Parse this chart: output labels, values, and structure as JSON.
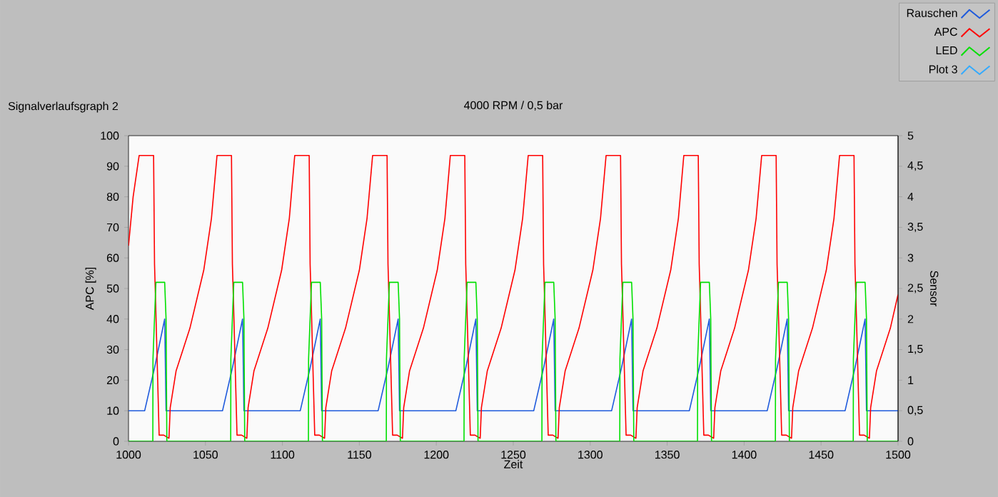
{
  "chart_data": {
    "type": "line",
    "title": "4000 RPM / 0,5 bar",
    "annotations": [
      "Signalverlaufsgraph 2"
    ],
    "xlabel": "Zeit",
    "ylabel": "APC [%]",
    "y2label": "Sensor",
    "xlim": [
      1000,
      1500
    ],
    "xticks": [
      1000,
      1050,
      1100,
      1150,
      1200,
      1250,
      1300,
      1350,
      1400,
      1450,
      1500
    ],
    "ylim": [
      0,
      100
    ],
    "yticks": [
      0,
      10,
      20,
      30,
      40,
      50,
      60,
      70,
      80,
      90,
      100
    ],
    "y2lim": [
      0,
      5
    ],
    "y2ticks": [
      0,
      {
        "value": 0.5,
        "label": "0,5"
      },
      1,
      {
        "value": 1.5,
        "label": "1,5"
      },
      2,
      {
        "value": 2.5,
        "label": "2,5"
      },
      3,
      {
        "value": 3.5,
        "label": "3,5"
      },
      4,
      {
        "value": 4.5,
        "label": "4,5"
      },
      5
    ],
    "legend": "top right",
    "marker": "none",
    "line_style": "solid",
    "grid": false,
    "series": [
      {
        "name": "Rauschen",
        "color": "#1e5adc",
        "x": [
          1000,
          1010.5,
          1016.9,
          1023.5,
          1024.4,
          1061.1,
          1067.5,
          1074.1,
          1075,
          1111.6,
          1118,
          1124.6,
          1125.5,
          1162.2,
          1168.6,
          1175.2,
          1176.1,
          1212.7,
          1219.1,
          1225.7,
          1226.6,
          1263.3,
          1269.7,
          1276.3,
          1277.2,
          1313.9,
          1320.3,
          1326.9,
          1327.8,
          1364.4,
          1370.8,
          1377.4,
          1378.3,
          1415,
          1421.4,
          1428,
          1428.9,
          1465.6,
          1472,
          1478.6,
          1479.5,
          1500
        ],
        "values": [
          10,
          10,
          24,
          40,
          10,
          10,
          24,
          40,
          10,
          10,
          24,
          40,
          10,
          10,
          24,
          40,
          10,
          10,
          24,
          40,
          10,
          10,
          24,
          40,
          10,
          10,
          24,
          40,
          10,
          10,
          24,
          40,
          10,
          10,
          24,
          40,
          10,
          10,
          24,
          40,
          10,
          10
        ]
      },
      {
        "name": "APC",
        "color": "#ff0000",
        "x": [
          1000,
          1003,
          1006.9,
          1016.3,
          1016.9,
          1017.9,
          1019.9,
          1022.9,
          1026.3,
          1027.1,
          1030.9,
          1039.9,
          1048.9,
          1053.9,
          1057.5,
          1066.9,
          1067.5,
          1068.5,
          1070.5,
          1073.5,
          1076.9,
          1077.7,
          1081.5,
          1090.5,
          1099.5,
          1104.5,
          1108,
          1117.4,
          1118,
          1119,
          1121,
          1124,
          1127.4,
          1128.2,
          1132,
          1141,
          1150,
          1155,
          1158.6,
          1168,
          1168.6,
          1169.6,
          1171.6,
          1174.6,
          1178,
          1178.8,
          1182.6,
          1191.6,
          1200.6,
          1205.6,
          1209.1,
          1218.5,
          1219.1,
          1220.1,
          1222.1,
          1225.1,
          1228.5,
          1229.3,
          1233.1,
          1242.1,
          1251.1,
          1256.1,
          1259.7,
          1269.1,
          1269.7,
          1270.7,
          1272.7,
          1275.7,
          1279.1,
          1279.9,
          1283.7,
          1292.7,
          1301.7,
          1306.7,
          1310.3,
          1319.7,
          1320.3,
          1321.3,
          1323.3,
          1326.3,
          1329.7,
          1330.5,
          1334.3,
          1343.3,
          1352.3,
          1357.3,
          1360.8,
          1370.2,
          1370.8,
          1371.8,
          1373.8,
          1376.8,
          1380.2,
          1381,
          1384.8,
          1393.8,
          1402.8,
          1407.8,
          1411.4,
          1420.8,
          1421.4,
          1422.4,
          1424.4,
          1427.4,
          1430.8,
          1431.6,
          1435.4,
          1444.4,
          1453.4,
          1458.4,
          1462,
          1471.4,
          1472,
          1473,
          1475,
          1478,
          1481.4,
          1482.2,
          1486,
          1495,
          1500
        ],
        "values": [
          64,
          80,
          93.5,
          93.5,
          58,
          40,
          2,
          2,
          1,
          11,
          23,
          37,
          56,
          73,
          93.5,
          93.5,
          58,
          40,
          2,
          2,
          1,
          11,
          23,
          37,
          56,
          73,
          93.5,
          93.5,
          58,
          40,
          2,
          2,
          1,
          11,
          23,
          37,
          56,
          73,
          93.5,
          93.5,
          58,
          40,
          2,
          2,
          1,
          11,
          23,
          37,
          56,
          73,
          93.5,
          93.5,
          58,
          40,
          2,
          2,
          1,
          11,
          23,
          37,
          56,
          73,
          93.5,
          93.5,
          58,
          40,
          2,
          2,
          1,
          11,
          23,
          37,
          56,
          73,
          93.5,
          93.5,
          58,
          40,
          2,
          2,
          1,
          11,
          23,
          37,
          56,
          73,
          93.5,
          93.5,
          58,
          40,
          2,
          2,
          1,
          11,
          23,
          37,
          56,
          73,
          93.5,
          93.5,
          58,
          40,
          2,
          2,
          1,
          11,
          23,
          37,
          56,
          73,
          93.5,
          93.5,
          58,
          40,
          2,
          2,
          1,
          11,
          23,
          37,
          48
        ]
      },
      {
        "name": "LED",
        "color": "#00e000",
        "x": [
          1000,
          1015.8,
          1015.9,
          1017.8,
          1023.5,
          1024.4,
          1024.9,
          1066.4,
          1066.5,
          1068.4,
          1074.1,
          1075,
          1075.5,
          1116.9,
          1117,
          1118.9,
          1124.6,
          1125.5,
          1126,
          1167.5,
          1167.6,
          1169.5,
          1175.2,
          1176.1,
          1176.6,
          1218,
          1218.1,
          1220,
          1225.7,
          1226.6,
          1227.1,
          1268.6,
          1268.7,
          1270.6,
          1276.3,
          1277.2,
          1277.7,
          1319.2,
          1319.3,
          1321.2,
          1326.9,
          1327.8,
          1328.3,
          1369.7,
          1369.8,
          1371.7,
          1377.4,
          1378.3,
          1378.8,
          1420.3,
          1420.4,
          1422.3,
          1428,
          1428.9,
          1429.4,
          1470.9,
          1471,
          1472.9,
          1478.6,
          1479.5,
          1480,
          1500
        ],
        "values": [
          0,
          0,
          27,
          52,
          52,
          40,
          0,
          0,
          27,
          52,
          52,
          40,
          0,
          0,
          27,
          52,
          52,
          40,
          0,
          0,
          27,
          52,
          52,
          40,
          0,
          0,
          27,
          52,
          52,
          40,
          0,
          0,
          27,
          52,
          52,
          40,
          0,
          0,
          27,
          52,
          52,
          40,
          0,
          0,
          27,
          52,
          52,
          40,
          0,
          0,
          27,
          52,
          52,
          40,
          0,
          0,
          27,
          52,
          52,
          40,
          0,
          0
        ]
      },
      {
        "name": "Plot 3",
        "color": "#33aaff"
      }
    ]
  }
}
